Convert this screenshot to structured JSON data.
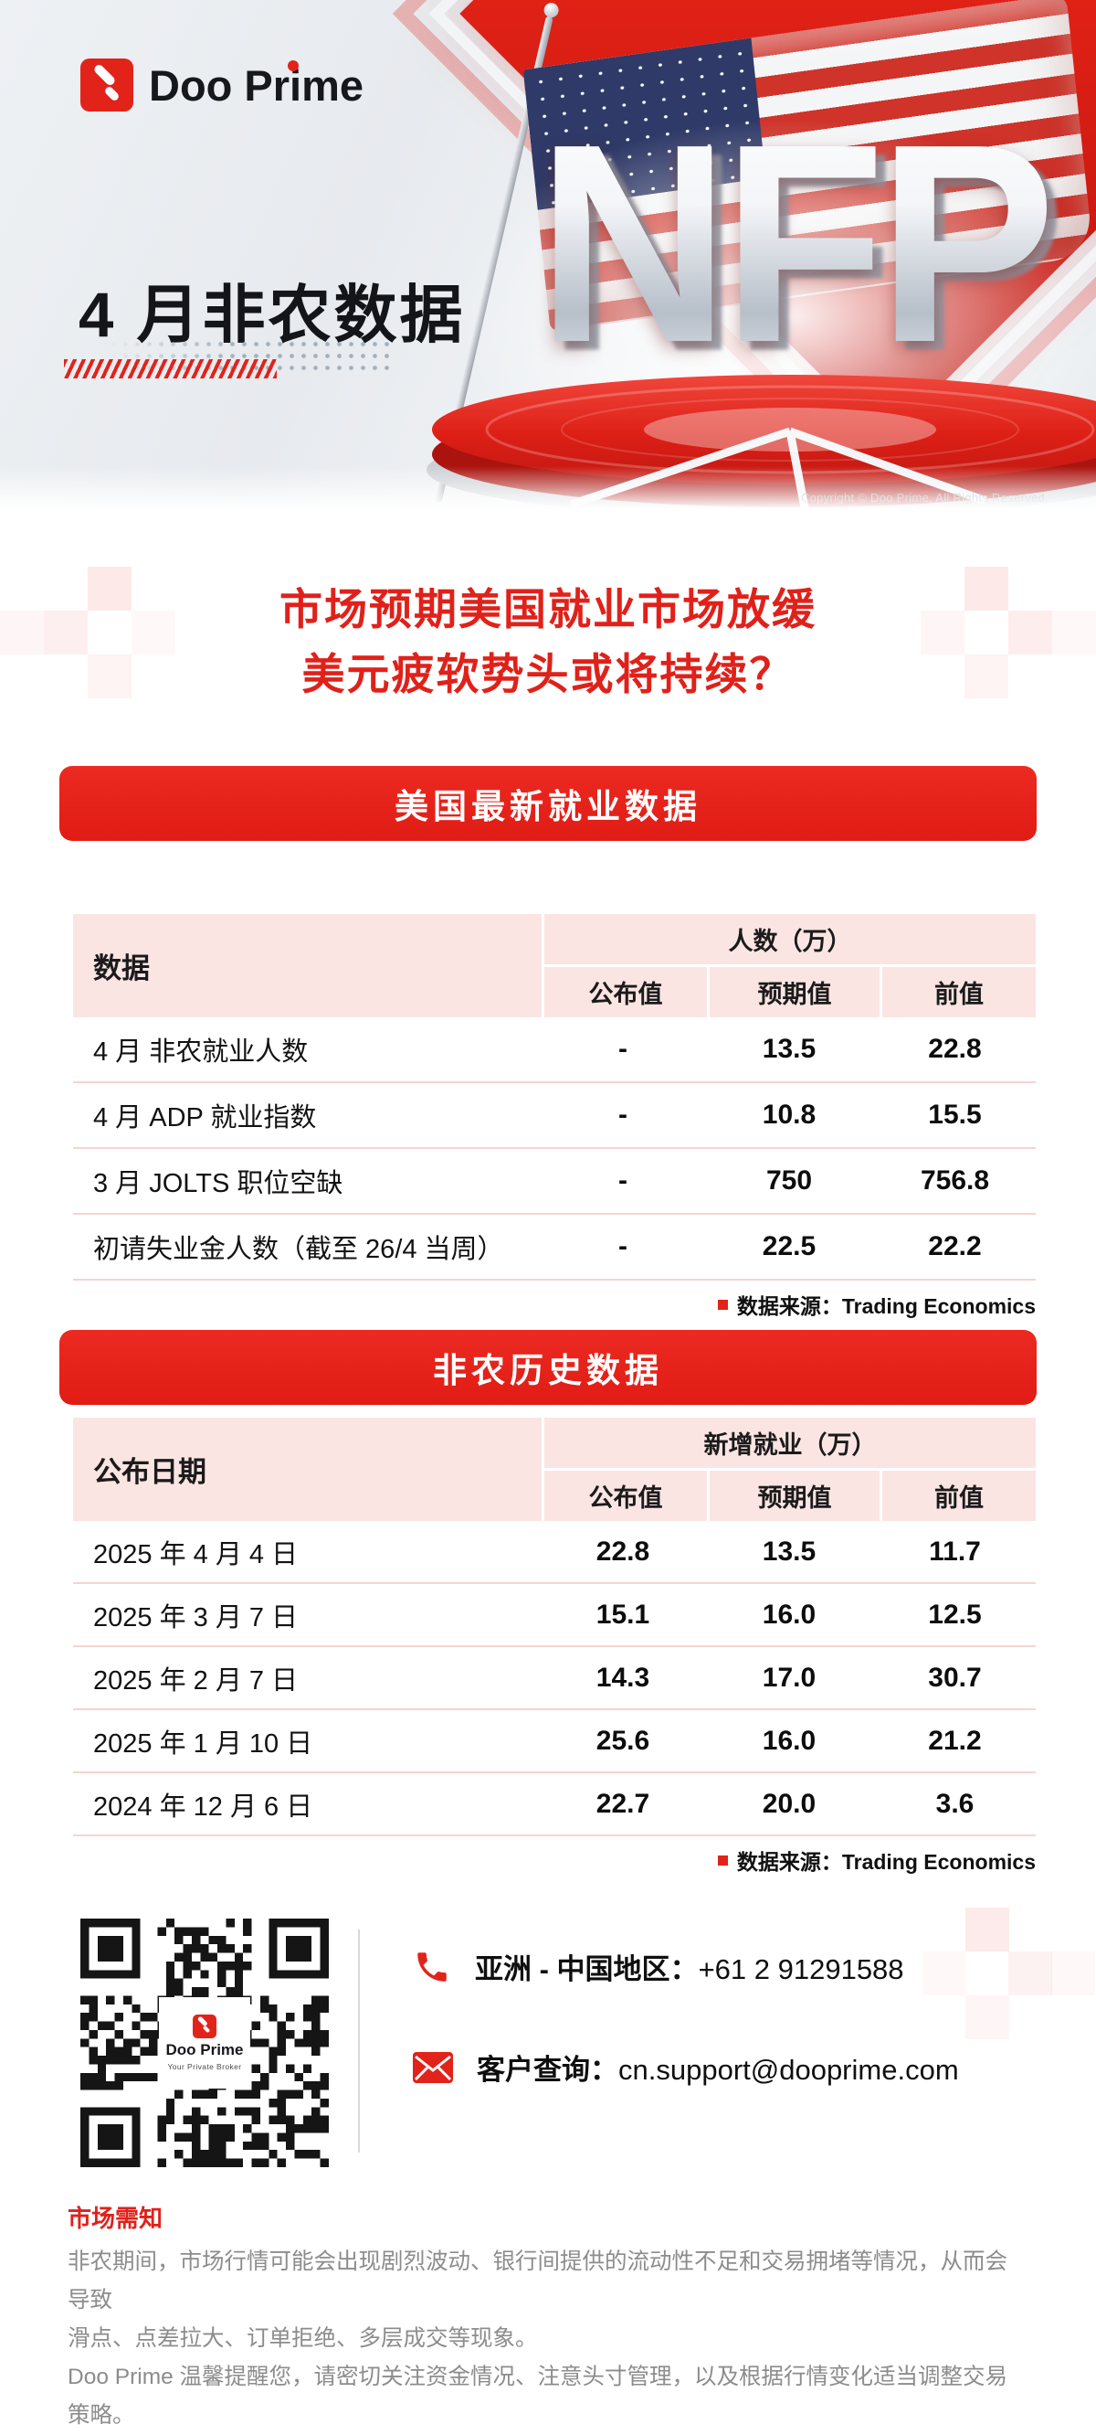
{
  "brand": {
    "name": "Doo Prime",
    "tagline": "Your Private Broker"
  },
  "hero": {
    "title": "4 月非农数据",
    "nfp": "NFP",
    "copyright": "Copyright © Doo Prime. All Rights Reserved."
  },
  "headline": {
    "line1": "市场预期美国就业市场放缓",
    "line2": "美元疲软势头或将持续？"
  },
  "latest": {
    "banner": "美国最新就业数据",
    "corner": "数据",
    "group": "人数（万）",
    "cols": [
      "公布值",
      "预期值",
      "前值"
    ],
    "rows": [
      {
        "label": "4 月 非农就业人数",
        "pub": "-",
        "exp": "13.5",
        "prev": "22.8"
      },
      {
        "label": "4 月 ADP 就业指数",
        "pub": "-",
        "exp": "10.8",
        "prev": "15.5"
      },
      {
        "label": "3 月 JOLTS 职位空缺",
        "pub": "-",
        "exp": "750",
        "prev": "756.8"
      },
      {
        "label": "初请失业金人数（截至 26/4 当周）",
        "pub": "-",
        "exp": "22.5",
        "prev": "22.2"
      }
    ],
    "source": "数据来源：Trading Economics"
  },
  "history": {
    "banner": "非农历史数据",
    "corner": "公布日期",
    "group": "新增就业（万）",
    "cols": [
      "公布值",
      "预期值",
      "前值"
    ],
    "rows": [
      {
        "label": "2025 年 4 月 4 日",
        "pub": "22.8",
        "exp": "13.5",
        "prev": "11.7"
      },
      {
        "label": "2025 年 3 月 7 日",
        "pub": "15.1",
        "exp": "16.0",
        "prev": "12.5"
      },
      {
        "label": "2025 年 2 月 7 日",
        "pub": "14.3",
        "exp": "17.0",
        "prev": "30.7"
      },
      {
        "label": "2025 年 1 月 10 日",
        "pub": "25.6",
        "exp": "16.0",
        "prev": "21.2"
      },
      {
        "label": "2024 年 12 月 6 日",
        "pub": "22.7",
        "exp": "20.0",
        "prev": "3.6"
      }
    ],
    "source": "数据来源：Trading Economics"
  },
  "contact": {
    "phone_label": "亚洲 - 中国地区：",
    "phone": "+61 2 91291588",
    "email_label": "客户查询：",
    "email": "cn.support@dooprime.com"
  },
  "notice": {
    "title": "市场需知",
    "line1": "非农期间，市场行情可能会出现剧烈波动、银行间提供的流动性不足和交易拥堵等情况，从而会导致",
    "line2": "滑点、点差拉大、订单拒绝、多层成交等现象。",
    "line3": "Doo Prime 温馨提醒您，请密切关注资金情况、注意头寸管理，以及根据行情变化适当调整交易策略。"
  },
  "colors": {
    "brand_red": "#e2231a",
    "banner_red": "#e7261f",
    "headline_red": "#e0211a",
    "header_pink": "#fbe5e3",
    "row_line": "#f6d4d1",
    "text_gray": "#8c8c8c"
  }
}
